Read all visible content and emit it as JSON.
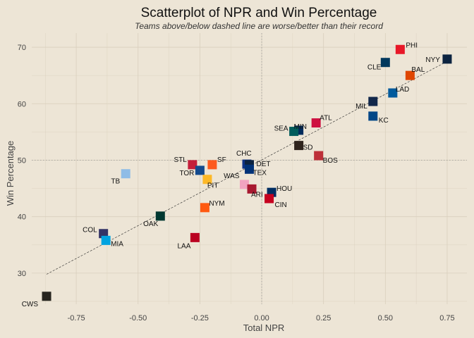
{
  "chart_data": {
    "type": "scatter",
    "title": "Scatterplot of NPR and Win Percentage",
    "subtitle": "Teams above/below dashed line are worse/better than their record",
    "xlabel": "Total NPR",
    "ylabel": "Win Percentage",
    "xlim": [
      -0.93,
      0.83
    ],
    "ylim": [
      24.5,
      72.5
    ],
    "xticks": [
      -0.75,
      -0.5,
      -0.25,
      0.0,
      0.25,
      0.5,
      0.75
    ],
    "xtick_labels": [
      "-0.75",
      "-0.50",
      "-0.25",
      "0.00",
      "0.25",
      "0.50",
      "0.75"
    ],
    "yticks": [
      30,
      40,
      50,
      60,
      70
    ],
    "ytick_labels": [
      "30",
      "40",
      "50",
      "60",
      "70"
    ],
    "reference_lines": {
      "x": 0.0,
      "y": 50.0
    },
    "trend_line": {
      "x": [
        -0.87,
        0.75
      ],
      "y": [
        29.8,
        67.5
      ]
    },
    "grid": true,
    "legend": "none",
    "points": [
      {
        "team": "PHI",
        "x": 0.56,
        "y": 69.6,
        "color": "#e81828"
      },
      {
        "team": "NYY",
        "x": 0.75,
        "y": 67.9,
        "color": "#0c2340"
      },
      {
        "team": "CLE",
        "x": 0.5,
        "y": 67.3,
        "color": "#00385d"
      },
      {
        "team": "BAL",
        "x": 0.6,
        "y": 65.0,
        "color": "#df4601"
      },
      {
        "team": "LAD",
        "x": 0.53,
        "y": 61.9,
        "color": "#005a9c"
      },
      {
        "team": "MIL",
        "x": 0.45,
        "y": 60.4,
        "color": "#12284b"
      },
      {
        "team": "KC",
        "x": 0.45,
        "y": 57.8,
        "color": "#004687"
      },
      {
        "team": "ATL",
        "x": 0.22,
        "y": 56.6,
        "color": "#ce1141"
      },
      {
        "team": "MIN",
        "x": 0.15,
        "y": 55.3,
        "color": "#002b5c"
      },
      {
        "team": "SEA",
        "x": 0.13,
        "y": 55.1,
        "color": "#005c5c"
      },
      {
        "team": "SD",
        "x": 0.15,
        "y": 52.6,
        "color": "#2f241d"
      },
      {
        "team": "BOS",
        "x": 0.23,
        "y": 50.8,
        "color": "#bd3039"
      },
      {
        "team": "CHC",
        "x": -0.06,
        "y": 49.3,
        "color": "#0e3386"
      },
      {
        "team": "DET",
        "x": -0.05,
        "y": 49.2,
        "color": "#0c2340"
      },
      {
        "team": "TEX",
        "x": -0.05,
        "y": 48.4,
        "color": "#003278"
      },
      {
        "team": "SF",
        "x": -0.2,
        "y": 49.2,
        "color": "#fd5a1e"
      },
      {
        "team": "STL",
        "x": -0.28,
        "y": 49.2,
        "color": "#c41e3a"
      },
      {
        "team": "TOR",
        "x": -0.25,
        "y": 48.2,
        "color": "#134a8e"
      },
      {
        "team": "PIT",
        "x": -0.22,
        "y": 46.6,
        "color": "#fdb827"
      },
      {
        "team": "TB",
        "x": -0.55,
        "y": 47.6,
        "color": "#8fbce6"
      },
      {
        "team": "WAS",
        "x": -0.07,
        "y": 45.7,
        "color": "#f2a3c0"
      },
      {
        "team": "ARI",
        "x": -0.04,
        "y": 44.9,
        "color": "#a71930"
      },
      {
        "team": "HOU",
        "x": 0.04,
        "y": 44.3,
        "color": "#002d62"
      },
      {
        "team": "CIN",
        "x": 0.03,
        "y": 43.2,
        "color": "#c6011f"
      },
      {
        "team": "NYM",
        "x": -0.23,
        "y": 41.6,
        "color": "#ff5910"
      },
      {
        "team": "OAK",
        "x": -0.41,
        "y": 40.1,
        "color": "#003831"
      },
      {
        "team": "LAA",
        "x": -0.27,
        "y": 36.3,
        "color": "#ba0021"
      },
      {
        "team": "COL",
        "x": -0.64,
        "y": 37.0,
        "color": "#333366"
      },
      {
        "team": "MIA",
        "x": -0.63,
        "y": 35.8,
        "color": "#00a3e0"
      },
      {
        "team": "CWS",
        "x": -0.87,
        "y": 25.9,
        "color": "#27251f"
      }
    ]
  }
}
